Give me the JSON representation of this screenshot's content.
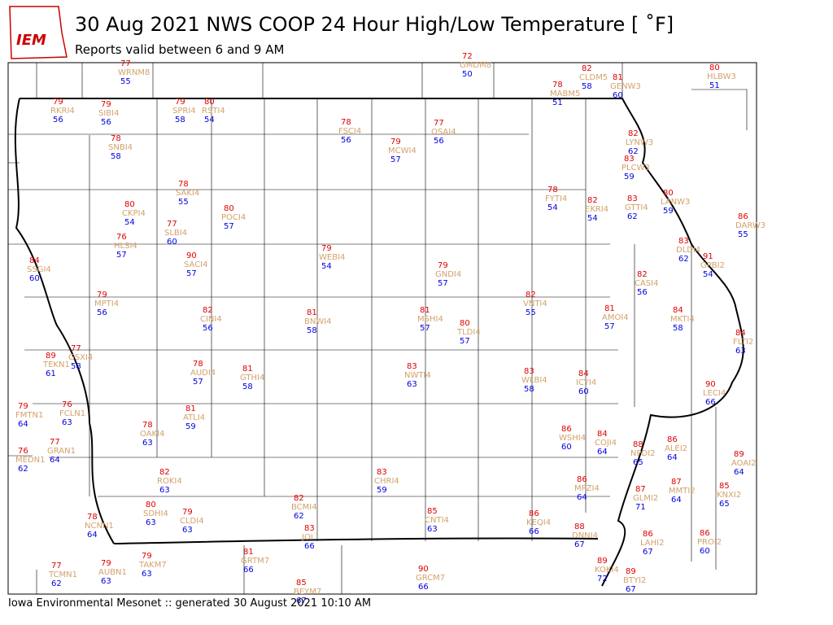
{
  "header": {
    "logo": "IEM",
    "title": "30 Aug 2021 NWS COOP 24 Hour High/Low Temperature [ ˚F]",
    "subtitle": "Reports valid between 6 and 9 AM"
  },
  "stations": [
    {
      "high": "77",
      "id": "WRNM8",
      "low": "55"
    },
    {
      "high": "72",
      "id": "GMDM8",
      "low": "50"
    },
    {
      "high": "82",
      "id": "CLDM5",
      "low": "58"
    },
    {
      "high": "81",
      "id": "GENW3",
      "low": "60"
    },
    {
      "high": "80",
      "id": "HLBW3",
      "low": "51"
    },
    {
      "high": "78",
      "id": "MABM5",
      "low": "51"
    },
    {
      "high": "79",
      "id": "RKRI4",
      "low": "56"
    },
    {
      "high": "79",
      "id": "SIBI4",
      "low": "56"
    },
    {
      "high": "79",
      "id": "SPRI4",
      "low": "58"
    },
    {
      "high": "80",
      "id": "RSTI4",
      "low": "54"
    },
    {
      "high": "78",
      "id": "FSCI4",
      "low": "56"
    },
    {
      "high": "77",
      "id": "OSAI4",
      "low": "56"
    },
    {
      "high": "79",
      "id": "MCWI4",
      "low": "57"
    },
    {
      "high": "78",
      "id": "SNBI4",
      "low": "58"
    },
    {
      "high": "82",
      "id": "LYNW3",
      "low": "62"
    },
    {
      "high": "83",
      "id": "PLCW3",
      "low": "59"
    },
    {
      "high": "78",
      "id": "SAKI4",
      "low": "55"
    },
    {
      "high": "78",
      "id": "FYTI4",
      "low": "54"
    },
    {
      "high": "82",
      "id": "EKRI4",
      "low": "54"
    },
    {
      "high": "83",
      "id": "GTTI4",
      "low": "62"
    },
    {
      "high": "80",
      "id": "LANW3",
      "low": "59"
    },
    {
      "high": "80",
      "id": "CKPI4",
      "low": "54"
    },
    {
      "high": "80",
      "id": "POCI4",
      "low": "57"
    },
    {
      "high": "77",
      "id": "SLBI4",
      "low": "60"
    },
    {
      "high": "86",
      "id": "DARW3",
      "low": "55"
    },
    {
      "high": "76",
      "id": "HLSI4",
      "low": "57"
    },
    {
      "high": "83",
      "id": "DLDI4",
      "low": "62"
    },
    {
      "high": "84",
      "id": "SSGI4",
      "low": "60"
    },
    {
      "high": "90",
      "id": "SACI4",
      "low": "57"
    },
    {
      "high": "79",
      "id": "WEBI4",
      "low": "54"
    },
    {
      "high": "91",
      "id": "GPBI2",
      "low": "54"
    },
    {
      "high": "79",
      "id": "GNDI4",
      "low": "57"
    },
    {
      "high": "82",
      "id": "CASI4",
      "low": "56"
    },
    {
      "high": "79",
      "id": "MPTI4",
      "low": "56"
    },
    {
      "high": "82",
      "id": "VNTI4",
      "low": "55"
    },
    {
      "high": "82",
      "id": "CINI4",
      "low": "56"
    },
    {
      "high": "81",
      "id": "BNWI4",
      "low": "58"
    },
    {
      "high": "81",
      "id": "MSHI4",
      "low": "57"
    },
    {
      "high": "81",
      "id": "AMOI4",
      "low": "57"
    },
    {
      "high": "84",
      "id": "MKTI4",
      "low": "58"
    },
    {
      "high": "80",
      "id": "TLDI4",
      "low": "57"
    },
    {
      "high": "84",
      "id": "FLTI2",
      "low": "63"
    },
    {
      "high": "89",
      "id": "TEKN1",
      "low": "61"
    },
    {
      "high": "77",
      "id": "GSXI4",
      "low": "58"
    },
    {
      "high": "78",
      "id": "AUDI4",
      "low": "57"
    },
    {
      "high": "81",
      "id": "GTHI4",
      "low": "58"
    },
    {
      "high": "83",
      "id": "NWTI4",
      "low": "63"
    },
    {
      "high": "83",
      "id": "WLBI4",
      "low": "58"
    },
    {
      "high": "84",
      "id": "ICYI4",
      "low": "60"
    },
    {
      "high": "90",
      "id": "LECI4",
      "low": "66"
    },
    {
      "high": "79",
      "id": "FMTN1",
      "low": "64"
    },
    {
      "high": "76",
      "id": "FCLN1",
      "low": "63"
    },
    {
      "high": "81",
      "id": "ATLI4",
      "low": "59"
    },
    {
      "high": "78",
      "id": "OAKI4",
      "low": "63"
    },
    {
      "high": "86",
      "id": "WSHI4",
      "low": "60"
    },
    {
      "high": "84",
      "id": "COJI4",
      "low": "64"
    },
    {
      "high": "88",
      "id": "NPDI2",
      "low": "65"
    },
    {
      "high": "86",
      "id": "ALEI2",
      "low": "64"
    },
    {
      "high": "77",
      "id": "GRAN1",
      "low": "64"
    },
    {
      "high": "76",
      "id": "MEDN1",
      "low": "62"
    },
    {
      "high": "89",
      "id": "AOAI2",
      "low": "64"
    },
    {
      "high": "83",
      "id": "CHRI4",
      "low": "59"
    },
    {
      "high": "82",
      "id": "ROKI4",
      "low": "63"
    },
    {
      "high": "86",
      "id": "MPZI4",
      "low": "64"
    },
    {
      "high": "87",
      "id": "MMTI2",
      "low": "64"
    },
    {
      "high": "87",
      "id": "GLMI2",
      "low": "71"
    },
    {
      "high": "85",
      "id": "KNXI2",
      "low": "65"
    },
    {
      "high": "80",
      "id": "SDHI4",
      "low": "63"
    },
    {
      "high": "79",
      "id": "CLDI4",
      "low": "63"
    },
    {
      "high": "82",
      "id": "BCMI4",
      "low": "62"
    },
    {
      "high": "85",
      "id": "CNTI4",
      "low": "63"
    },
    {
      "high": "86",
      "id": "KEQI4",
      "low": "66"
    },
    {
      "high": "78",
      "id": "NCNN1",
      "low": "64"
    },
    {
      "high": "83",
      "id": "JOI",
      "low": "66"
    },
    {
      "high": "88",
      "id": "DNNI4",
      "low": "67"
    },
    {
      "high": "86",
      "id": "LAHI2",
      "low": "67"
    },
    {
      "high": "86",
      "id": "PROI2",
      "low": "60"
    },
    {
      "high": "81",
      "id": "GRTM7",
      "low": "66"
    },
    {
      "high": "79",
      "id": "TAKM7",
      "low": "63"
    },
    {
      "high": "77",
      "id": "TCMN1",
      "low": "62"
    },
    {
      "high": "79",
      "id": "AUBN1",
      "low": "63"
    },
    {
      "high": "90",
      "id": "GRCM7",
      "low": "66"
    },
    {
      "high": "89",
      "id": "KOKI4",
      "low": "72"
    },
    {
      "high": "89",
      "id": "BTYI2",
      "low": "67"
    },
    {
      "high": "85",
      "id": "BEYM7",
      "low": "67"
    }
  ],
  "footer": "Iowa Environmental Mesonet :: generated 30 August 2021 10:10 AM"
}
